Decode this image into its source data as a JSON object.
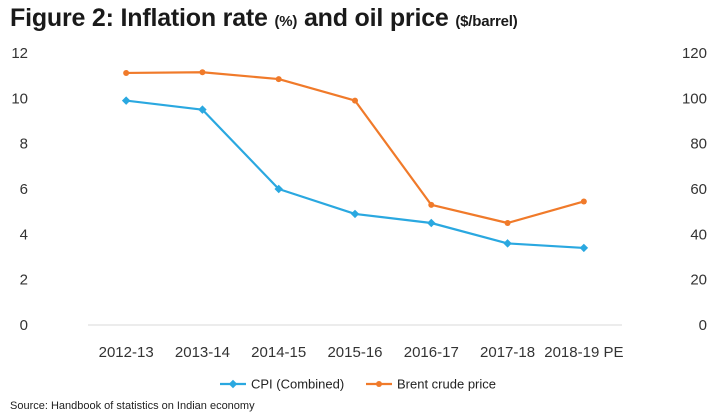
{
  "figure": {
    "title_main": "Figure 2: Inflation rate ",
    "title_unit1": "(%)",
    "title_mid": " and oil price ",
    "title_unit2": "($/barrel)"
  },
  "source": "Source: Handbook of statistics on Indian economy",
  "colors": {
    "cpi": "#2aa8e0",
    "brent": "#f07a2a",
    "axis": "#d9d9d9"
  },
  "chart_data": {
    "type": "line",
    "title": "Figure 2: Inflation rate (%) and oil price ($/barrel)",
    "categories": [
      "2012-13",
      "2013-14",
      "2014-15",
      "2015-16",
      "2016-17",
      "2017-18",
      "2018-19 PE"
    ],
    "y_left": {
      "ylim": [
        0,
        12
      ],
      "ticks": [
        "0",
        "2",
        "4",
        "6",
        "8",
        "10",
        "12"
      ]
    },
    "y_right": {
      "ylim": [
        0,
        120
      ],
      "ticks": [
        "0",
        "20",
        "40",
        "60",
        "80",
        "100",
        "120"
      ]
    },
    "series": [
      {
        "name": "CPI (Combined)",
        "axis": "left",
        "values": [
          9.9,
          9.5,
          6.0,
          4.9,
          4.5,
          3.6,
          3.4
        ]
      },
      {
        "name": "Brent crude price",
        "axis": "right",
        "values": [
          111.2,
          111.5,
          108.5,
          99,
          53,
          45,
          54.5
        ]
      }
    ],
    "legend_position": "bottom",
    "grid": false
  }
}
